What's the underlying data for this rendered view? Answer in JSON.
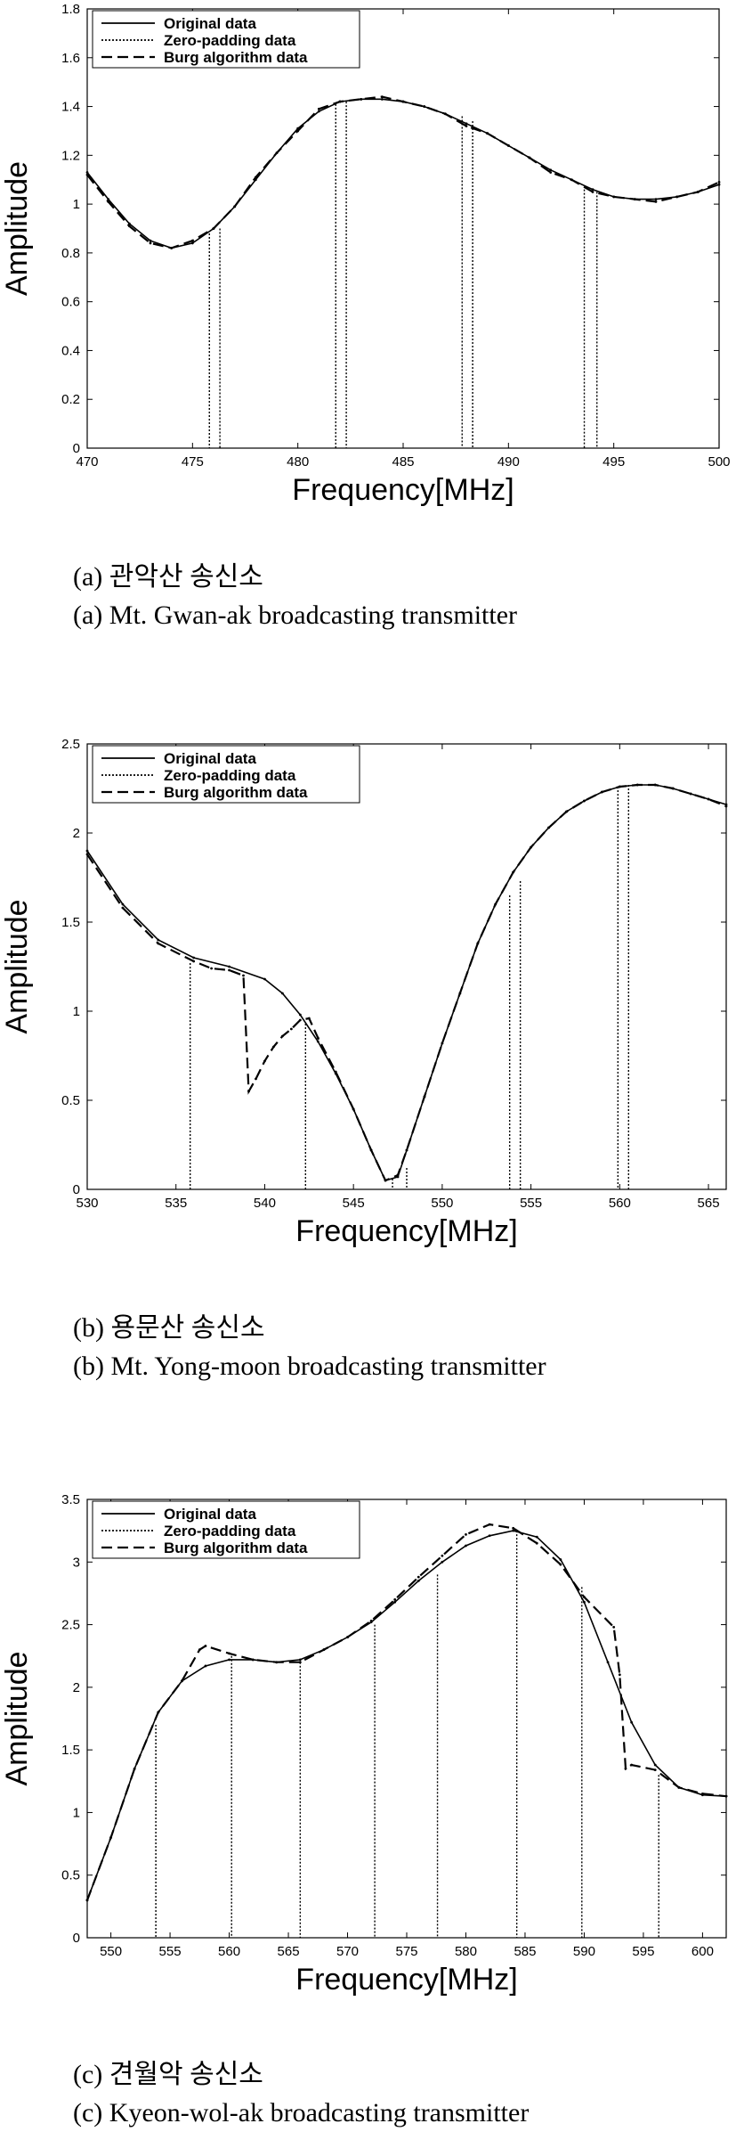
{
  "legend_labels": [
    "Original data",
    "Zero-padding data",
    "Burg algorithm data"
  ],
  "captions": [
    {
      "korean": "(a) 관악산 송신소",
      "english": "(a) Mt. Gwan-ak broadcasting transmitter"
    },
    {
      "korean": "(b) 용문산 송신소",
      "english": "(b) Mt. Yong-moon broadcasting transmitter"
    },
    {
      "korean": "(c) 견월악 송신소",
      "english": "(c) Kyeon-wol-ak broadcasting transmitter"
    }
  ],
  "chart_data": [
    {
      "type": "line",
      "xlabel": "Frequency[MHz]",
      "ylabel": "Amplitude",
      "xlim": [
        470,
        500
      ],
      "ylim": [
        0,
        1.8
      ],
      "xticks": [
        470,
        475,
        480,
        485,
        490,
        495,
        500
      ],
      "yticks": [
        0,
        0.2,
        0.4,
        0.6,
        0.8,
        1,
        1.2,
        1.4,
        1.6,
        1.8
      ],
      "grid": false,
      "legend_position": "top-left",
      "series": [
        {
          "name": "Original data",
          "style": "solid",
          "x": [
            470,
            471,
            472,
            473,
            474,
            475,
            476,
            477,
            478,
            479,
            480,
            481,
            482,
            483,
            484,
            485,
            486,
            487,
            488,
            489,
            490,
            491,
            492,
            493,
            494,
            495,
            496,
            497,
            498,
            499,
            500
          ],
          "y": [
            1.13,
            1.02,
            0.92,
            0.85,
            0.82,
            0.84,
            0.9,
            0.99,
            1.1,
            1.21,
            1.31,
            1.38,
            1.42,
            1.43,
            1.43,
            1.42,
            1.4,
            1.37,
            1.33,
            1.29,
            1.24,
            1.19,
            1.14,
            1.1,
            1.06,
            1.03,
            1.02,
            1.02,
            1.03,
            1.05,
            1.08
          ]
        },
        {
          "name": "Zero-padding data",
          "style": "dotted",
          "x": [
            475.8,
            476.3,
            481.8,
            482.3,
            487.8,
            488.3,
            493.6,
            494.2
          ],
          "y": [
            0.88,
            0.9,
            1.41,
            1.42,
            1.36,
            1.34,
            1.06,
            1.05
          ]
        },
        {
          "name": "Burg algorithm data",
          "style": "dashed",
          "x": [
            470,
            471,
            472,
            473,
            474,
            475,
            476,
            477,
            478,
            479,
            480,
            481,
            482,
            483,
            484,
            485,
            486,
            487,
            488,
            489,
            490,
            491,
            492,
            493,
            494,
            495,
            496,
            497,
            498,
            499,
            500
          ],
          "y": [
            1.12,
            1.01,
            0.91,
            0.84,
            0.82,
            0.85,
            0.9,
            0.99,
            1.11,
            1.21,
            1.3,
            1.39,
            1.42,
            1.43,
            1.44,
            1.42,
            1.4,
            1.37,
            1.32,
            1.29,
            1.24,
            1.19,
            1.13,
            1.1,
            1.05,
            1.03,
            1.02,
            1.01,
            1.03,
            1.05,
            1.09
          ]
        }
      ]
    },
    {
      "type": "line",
      "xlabel": "Frequency[MHz]",
      "ylabel": "Amplitude",
      "xlim": [
        530,
        566
      ],
      "ylim": [
        0,
        2.5
      ],
      "xticks": [
        530,
        535,
        540,
        545,
        550,
        555,
        560,
        565
      ],
      "yticks": [
        0,
        0.5,
        1,
        1.5,
        2,
        2.5
      ],
      "grid": false,
      "legend_position": "top-left",
      "series": [
        {
          "name": "Original data",
          "style": "solid",
          "x": [
            530,
            532,
            534,
            536,
            538,
            540,
            541,
            542,
            543,
            544,
            545,
            546,
            546.8,
            547.5,
            548,
            549,
            550,
            551,
            552,
            553,
            554,
            555,
            556,
            557,
            558,
            559,
            560,
            561,
            562,
            563,
            564,
            565,
            566
          ],
          "y": [
            1.9,
            1.6,
            1.4,
            1.3,
            1.25,
            1.18,
            1.1,
            0.98,
            0.83,
            0.65,
            0.45,
            0.22,
            0.05,
            0.07,
            0.22,
            0.52,
            0.82,
            1.1,
            1.38,
            1.6,
            1.78,
            1.92,
            2.03,
            2.12,
            2.18,
            2.23,
            2.26,
            2.27,
            2.27,
            2.25,
            2.22,
            2.19,
            2.16
          ]
        },
        {
          "name": "Zero-padding data",
          "style": "dotted",
          "x": [
            535.8,
            542.3,
            547.2,
            548.0,
            553.8,
            554.4,
            559.9,
            560.5
          ],
          "y": [
            1.27,
            0.93,
            0.06,
            0.12,
            1.65,
            1.73,
            2.26,
            2.27
          ]
        },
        {
          "name": "Burg algorithm data",
          "style": "dashed",
          "x": [
            530,
            532,
            534,
            536,
            537,
            538,
            538.8,
            539.1,
            539.5,
            540,
            540.5,
            541,
            541.5,
            542,
            542.5,
            543,
            544,
            545,
            546,
            546.8,
            547.5,
            548,
            549,
            550,
            551,
            552,
            553,
            554,
            555,
            556,
            557,
            558,
            559,
            560,
            561,
            562,
            563,
            564,
            565,
            566
          ],
          "y": [
            1.88,
            1.58,
            1.38,
            1.28,
            1.24,
            1.23,
            1.2,
            0.55,
            0.62,
            0.72,
            0.8,
            0.86,
            0.9,
            0.95,
            0.96,
            0.85,
            0.66,
            0.45,
            0.22,
            0.05,
            0.08,
            0.22,
            0.52,
            0.82,
            1.1,
            1.38,
            1.6,
            1.78,
            1.92,
            2.03,
            2.12,
            2.18,
            2.23,
            2.26,
            2.27,
            2.27,
            2.25,
            2.22,
            2.19,
            2.15
          ]
        }
      ]
    },
    {
      "type": "line",
      "xlabel": "Frequency[MHz]",
      "ylabel": "Amplitude",
      "xlim": [
        548,
        602
      ],
      "ylim": [
        0,
        3.5
      ],
      "xticks": [
        550,
        555,
        560,
        565,
        570,
        575,
        580,
        585,
        590,
        595,
        600
      ],
      "yticks": [
        0,
        0.5,
        1,
        1.5,
        2,
        2.5,
        3,
        3.5
      ],
      "grid": false,
      "legend_position": "top-left",
      "series": [
        {
          "name": "Original data",
          "style": "solid",
          "x": [
            548,
            550,
            552,
            554,
            556,
            558,
            560,
            562,
            564,
            566,
            568,
            570,
            572,
            574,
            576,
            578,
            580,
            582,
            584,
            586,
            588,
            590,
            592,
            594,
            596,
            598,
            600,
            602
          ],
          "y": [
            0.3,
            0.8,
            1.35,
            1.8,
            2.05,
            2.17,
            2.22,
            2.22,
            2.2,
            2.22,
            2.3,
            2.4,
            2.52,
            2.68,
            2.85,
            3.0,
            3.13,
            3.21,
            3.25,
            3.2,
            3.02,
            2.68,
            2.2,
            1.72,
            1.38,
            1.2,
            1.14,
            1.13
          ]
        },
        {
          "name": "Zero-padding data",
          "style": "dotted",
          "x": [
            553.8,
            560.2,
            566.0,
            572.3,
            577.6,
            584.3,
            589.8,
            596.3
          ],
          "y": [
            1.7,
            2.25,
            2.2,
            2.5,
            2.9,
            3.25,
            2.8,
            1.3
          ]
        },
        {
          "name": "Burg algorithm data",
          "style": "dashed",
          "x": [
            548,
            550,
            552,
            554,
            556,
            557.5,
            558,
            560,
            562,
            564,
            566,
            568,
            570,
            572,
            574,
            576,
            578,
            580,
            582,
            584,
            586,
            588,
            590,
            592.5,
            593,
            593.5,
            594,
            596,
            598,
            600,
            602
          ],
          "y": [
            0.3,
            0.8,
            1.35,
            1.8,
            2.05,
            2.3,
            2.33,
            2.27,
            2.22,
            2.2,
            2.2,
            2.3,
            2.4,
            2.53,
            2.7,
            2.88,
            3.05,
            3.22,
            3.3,
            3.27,
            3.15,
            2.98,
            2.72,
            2.48,
            2.1,
            1.35,
            1.38,
            1.34,
            1.2,
            1.15,
            1.13
          ]
        }
      ]
    }
  ]
}
